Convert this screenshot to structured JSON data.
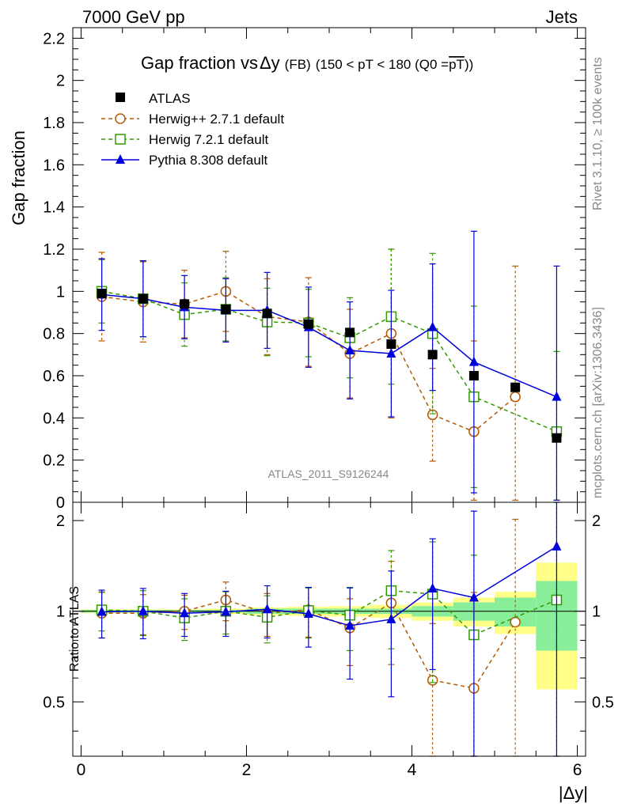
{
  "header": {
    "left": "7000 GeV pp",
    "right": "Jets"
  },
  "side": {
    "rivet": "Rivet 3.1.10, ≥ 100k events",
    "mcplots": "mcplots.cern.ch [arXiv:1306.3436]"
  },
  "chart_data": {
    "type": "line",
    "title_main": "Gap fraction vs",
    "title_delta": "Δy",
    "title_fb": "(FB)",
    "title_range": "(150 < pT < 180 (Q0 =",
    "title_q0": "pT",
    "title_close": "))",
    "analysis_label": "ATLAS_2011_S9126244",
    "ylabel": "Gap fraction",
    "ratio_ylabel": "Ratio to ATLAS",
    "xlabel": "|Δy|",
    "xlim": [
      -0.1,
      6.1
    ],
    "ylim": [
      0,
      2.25
    ],
    "ratio_ylim": [
      0.33,
      2.3
    ],
    "x_ticks": [
      0,
      2,
      4,
      6
    ],
    "x_tick_labels": [
      "0",
      "2",
      "4",
      "6"
    ],
    "y_ticks": [
      0,
      0.2,
      0.4,
      0.6,
      0.8,
      1,
      1.2,
      1.4,
      1.6,
      1.8,
      2,
      2.2
    ],
    "y_tick_labels": [
      "0",
      "0.2",
      "0.4",
      "0.6",
      "0.8",
      "1",
      "1.2",
      "1.4",
      "1.6",
      "1.8",
      "2",
      "2.2"
    ],
    "ratio_ticks": [
      0.5,
      1,
      2
    ],
    "ratio_tick_labels": [
      "0.5",
      "1",
      "2"
    ],
    "x": [
      0.25,
      0.75,
      1.25,
      1.75,
      2.25,
      2.75,
      3.25,
      3.75,
      4.25,
      4.75,
      5.25,
      5.75
    ],
    "data": {
      "name": "ATLAS",
      "color": "#000000",
      "values": [
        0.99,
        0.965,
        0.94,
        0.915,
        0.895,
        0.845,
        0.805,
        0.75,
        0.7,
        0.6,
        0.545,
        0.305
      ],
      "band_inner": [
        0.01,
        0.01,
        0.01,
        0.01,
        0.02,
        0.02,
        0.02,
        0.02,
        0.04,
        0.07,
        0.11,
        0.26
      ],
      "band_outer": [
        0.015,
        0.015,
        0.015,
        0.02,
        0.03,
        0.035,
        0.04,
        0.05,
        0.07,
        0.11,
        0.16,
        0.45
      ]
    },
    "series": [
      {
        "name": "Herwig++ 2.7.1 default",
        "color": "#b35900",
        "marker": "circle",
        "dash": "5,4",
        "values": [
          0.975,
          0.95,
          0.94,
          1.0,
          0.88,
          0.855,
          0.705,
          0.8,
          0.415,
          0.335,
          0.5,
          null
        ],
        "errors": [
          0.21,
          0.19,
          0.16,
          0.19,
          0.18,
          0.21,
          0.21,
          0.4,
          0.22,
          0.43,
          0.62,
          null
        ],
        "ratio": [
          0.985,
          0.985,
          1.0,
          1.09,
          0.985,
          1.01,
          0.88,
          1.065,
          0.59,
          0.555,
          0.92,
          null
        ],
        "ratio_errors": [
          0.17,
          0.15,
          0.13,
          0.16,
          0.16,
          0.19,
          0.22,
          0.4,
          0.32,
          0.6,
          1.1,
          null
        ]
      },
      {
        "name": "Herwig 7.2.1 default",
        "color": "#339900",
        "marker": "square",
        "dash": "5,4",
        "values": [
          1.0,
          0.965,
          0.89,
          0.915,
          0.855,
          0.85,
          0.78,
          0.88,
          0.8,
          0.5,
          null,
          0.335
        ],
        "errors": [
          0.15,
          0.18,
          0.15,
          0.15,
          0.16,
          0.16,
          0.19,
          0.32,
          0.38,
          0.43,
          null,
          0.38
        ],
        "ratio": [
          1.01,
          1.0,
          0.95,
          1.0,
          0.955,
          1.005,
          0.97,
          1.17,
          1.14,
          0.835,
          null,
          1.09
        ],
        "ratio_errors": [
          0.15,
          0.17,
          0.15,
          0.16,
          0.17,
          0.19,
          0.23,
          0.42,
          0.56,
          0.7,
          null,
          1.3
        ]
      },
      {
        "name": "Pythia 8.308 default",
        "color": "#0000dd",
        "marker": "triangle",
        "dash": "",
        "values": [
          0.985,
          0.965,
          0.925,
          0.91,
          0.91,
          0.83,
          0.72,
          0.705,
          0.83,
          0.665,
          null,
          0.5
        ],
        "errors": [
          0.17,
          0.18,
          0.15,
          0.15,
          0.18,
          0.19,
          0.23,
          0.3,
          0.3,
          0.62,
          null,
          0.62
        ],
        "ratio": [
          0.995,
          1.0,
          0.985,
          0.995,
          1.015,
          0.98,
          0.895,
          0.94,
          1.19,
          1.11,
          null,
          1.64
        ],
        "ratio_errors": [
          0.18,
          0.19,
          0.16,
          0.17,
          0.2,
          0.22,
          0.3,
          0.42,
          0.55,
          1.04,
          null,
          2.1
        ]
      }
    ]
  }
}
